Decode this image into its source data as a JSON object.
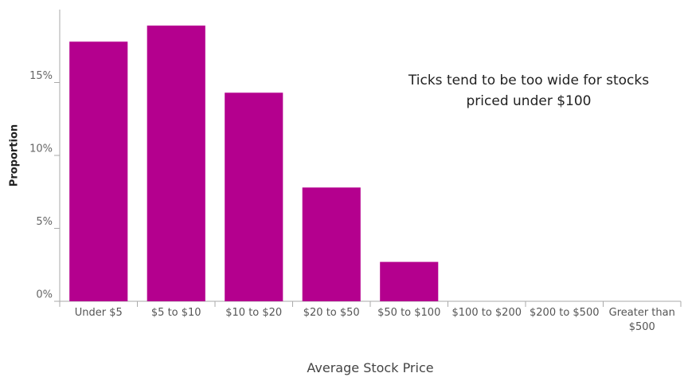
{
  "chart_data": {
    "type": "bar",
    "categories": [
      "Under $5",
      "$5 to $10",
      "$10 to $20",
      "$20 to $50",
      "$50 to $100",
      "$100 to $200",
      "$200 to $500",
      "Greater than $500"
    ],
    "values": [
      17.8,
      18.9,
      14.3,
      7.8,
      2.7,
      0,
      0,
      0
    ],
    "color": "#b4008e",
    "ylim": [
      0,
      20
    ],
    "yticks": [
      {
        "value": 0,
        "label": "0%"
      },
      {
        "value": 5,
        "label": "5%"
      },
      {
        "value": 10,
        "label": "10%"
      },
      {
        "value": 15,
        "label": "15%"
      }
    ],
    "x_label": "Average Stock Price",
    "y_label": "Proportion",
    "annotation": "Ticks tend to be too wide for stocks priced under $100"
  }
}
